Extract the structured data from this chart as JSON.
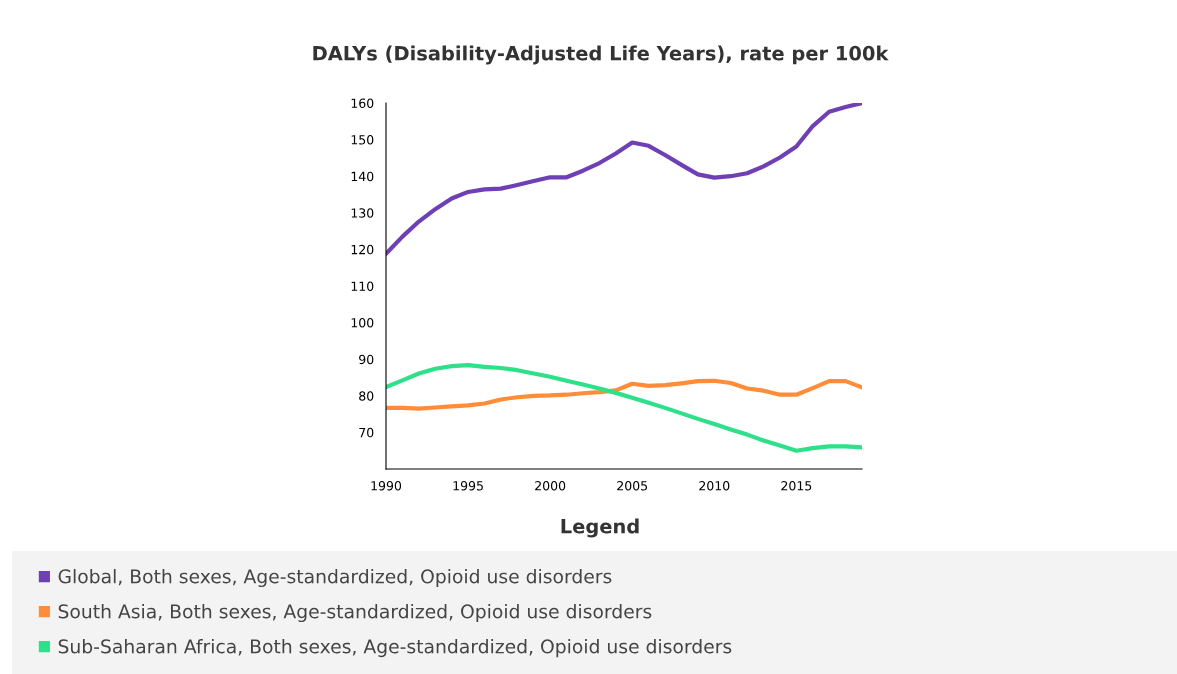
{
  "chart_data": {
    "type": "line",
    "title": "DALYs (Disability-Adjusted Life Years), rate per 100k",
    "legend_title": "Legend",
    "x": [
      1990,
      1991,
      1992,
      1993,
      1994,
      1995,
      1996,
      1997,
      1998,
      1999,
      2000,
      2001,
      2002,
      2003,
      2004,
      2005,
      2006,
      2007,
      2008,
      2009,
      2010,
      2011,
      2012,
      2013,
      2014,
      2015,
      2016,
      2017,
      2018,
      2019
    ],
    "series": [
      {
        "name": "Global, Both sexes, Age-standardized, Opioid use disorders",
        "color": "#6f3fb5",
        "values": [
          118.8,
          123.5,
          127.6,
          131,
          133.9,
          135.7,
          136.4,
          136.6,
          137.6,
          138.7,
          139.7,
          139.7,
          141.5,
          143.6,
          146.2,
          149.2,
          148.3,
          145.8,
          143.1,
          140.5,
          139.6,
          140,
          140.8,
          142.7,
          145.1,
          148.1,
          153.7,
          157.6,
          158.9,
          160
        ]
      },
      {
        "name": "South Asia, Both sexes, Age-standardized, Opioid use disorders",
        "color": "#ff8c38",
        "values": [
          76.7,
          76.7,
          76.5,
          76.8,
          77.1,
          77.4,
          77.9,
          79,
          79.6,
          80,
          80.1,
          80.3,
          80.7,
          81,
          81.5,
          83.3,
          82.7,
          82.9,
          83.4,
          84,
          84.1,
          83.5,
          82,
          81.4,
          80.3,
          80.3,
          82.1,
          84,
          84,
          82.3
        ]
      },
      {
        "name": "Sub-Saharan Africa, Both sexes, Age-standardized, Opioid use disorders",
        "color": "#2ee08a",
        "values": [
          82.4,
          84.2,
          86.1,
          87.4,
          88.1,
          88.4,
          87.9,
          87.6,
          87,
          86.1,
          85.2,
          84.1,
          83.1,
          82,
          80.8,
          79.5,
          78.1,
          76.7,
          75.2,
          73.7,
          72.3,
          70.8,
          69.4,
          67.8,
          66.4,
          65,
          65.7,
          66.2,
          66.2,
          65.9
        ]
      }
    ],
    "xlim": [
      1990,
      2019
    ],
    "xticks": [
      1990,
      1995,
      2000,
      2005,
      2010,
      2015
    ],
    "ylim": [
      60,
      160
    ],
    "yticks": [
      70,
      80,
      90,
      100,
      110,
      120,
      130,
      140,
      150,
      160
    ],
    "grid": false,
    "legend": "bottom",
    "marker": "none",
    "line_style": "solid"
  }
}
